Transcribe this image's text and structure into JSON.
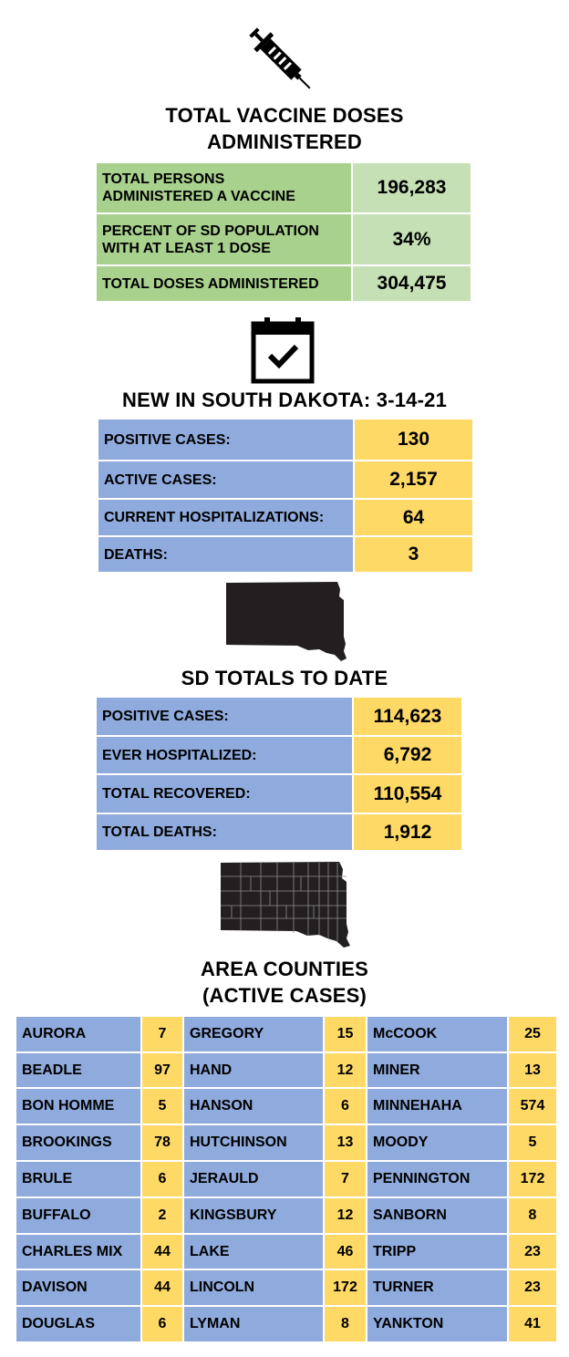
{
  "icons": {
    "vaccine": "syringe-icon",
    "date": "calendar-check-icon",
    "state": "south-dakota-map-icon",
    "counties": "south-dakota-county-map-icon"
  },
  "colors": {
    "green_label": "#a9d18e",
    "green_value": "#c5e0b4",
    "blue_label": "#8faadc",
    "yellow_value": "#ffd966"
  },
  "vaccine": {
    "title_line1": "TOTAL VACCINE DOSES",
    "title_line2": "ADMINISTERED",
    "rows": [
      {
        "label_line1": "TOTAL PERSONS",
        "label_line2": "ADMINISTERED A VACCINE",
        "value": "196,283"
      },
      {
        "label_line1": "PERCENT OF SD POPULATION",
        "label_line2": "WITH AT LEAST 1 DOSE",
        "value": "34%"
      },
      {
        "label_line1": "TOTAL DOSES ADMINISTERED",
        "label_line2": "",
        "value": "304,475"
      }
    ]
  },
  "new_cases": {
    "title": "NEW IN SOUTH DAKOTA: 3-14-21",
    "rows": [
      {
        "label": "POSITIVE CASES:",
        "value": "130"
      },
      {
        "label": "ACTIVE CASES:",
        "value": "2,157"
      },
      {
        "label": "CURRENT HOSPITALIZATIONS:",
        "value": "64"
      },
      {
        "label": "DEATHS:",
        "value": "3"
      }
    ]
  },
  "totals": {
    "title": "SD TOTALS TO DATE",
    "rows": [
      {
        "label": "POSITIVE CASES:",
        "value": "114,623"
      },
      {
        "label": "EVER HOSPITALIZED:",
        "value": "6,792"
      },
      {
        "label": "TOTAL RECOVERED:",
        "value": "110,554"
      },
      {
        "label": "TOTAL DEATHS:",
        "value": "1,912"
      }
    ]
  },
  "counties": {
    "title_line1": "AREA COUNTIES",
    "title_line2": "(ACTIVE CASES)",
    "rows": [
      [
        {
          "name": "AURORA",
          "value": "7"
        },
        {
          "name": "GREGORY",
          "value": "15"
        },
        {
          "name": "McCOOK",
          "value": "25"
        }
      ],
      [
        {
          "name": "BEADLE",
          "value": "97"
        },
        {
          "name": "HAND",
          "value": "12"
        },
        {
          "name": "MINER",
          "value": "13"
        }
      ],
      [
        {
          "name": "BON HOMME",
          "value": "5"
        },
        {
          "name": "HANSON",
          "value": "6"
        },
        {
          "name": "MINNEHAHA",
          "value": "574"
        }
      ],
      [
        {
          "name": "BROOKINGS",
          "value": "78"
        },
        {
          "name": "HUTCHINSON",
          "value": "13"
        },
        {
          "name": "MOODY",
          "value": "5"
        }
      ],
      [
        {
          "name": "BRULE",
          "value": "6"
        },
        {
          "name": "JERAULD",
          "value": "7"
        },
        {
          "name": "PENNINGTON",
          "value": "172"
        }
      ],
      [
        {
          "name": "BUFFALO",
          "value": "2"
        },
        {
          "name": "KINGSBURY",
          "value": "12"
        },
        {
          "name": "SANBORN",
          "value": "8"
        }
      ],
      [
        {
          "name": "CHARLES MIX",
          "value": "44"
        },
        {
          "name": "LAKE",
          "value": "46"
        },
        {
          "name": "TRIPP",
          "value": "23"
        }
      ],
      [
        {
          "name": "DAVISON",
          "value": "44"
        },
        {
          "name": "LINCOLN",
          "value": "172"
        },
        {
          "name": "TURNER",
          "value": "23"
        }
      ],
      [
        {
          "name": "DOUGLAS",
          "value": "6"
        },
        {
          "name": "LYMAN",
          "value": "8"
        },
        {
          "name": "YANKTON",
          "value": "41"
        }
      ]
    ]
  }
}
